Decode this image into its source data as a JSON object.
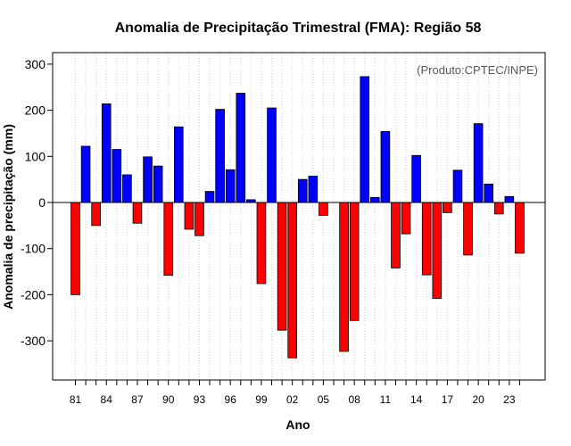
{
  "chart_data": {
    "type": "bar",
    "title": "Anomalia de Precipitação Trimestral (FMA): Região 58",
    "xlabel": "Ano",
    "ylabel": "Anomalia de precipitação (mm)",
    "annotation": "(Produto:CPTEC/INPE)",
    "ylim": [
      -385,
      325
    ],
    "yticks": [
      -300,
      -200,
      -100,
      0,
      100,
      200,
      300
    ],
    "grid": "vertical dotted, every year",
    "positive_color": "#0000ff",
    "negative_color": "#ff0000",
    "categories": [
      "1981",
      "1982",
      "1983",
      "1984",
      "1985",
      "1986",
      "1987",
      "1988",
      "1989",
      "1990",
      "1991",
      "1992",
      "1993",
      "1994",
      "1995",
      "1996",
      "1997",
      "1998",
      "1999",
      "2000",
      "2001",
      "2002",
      "2003",
      "2004",
      "2005",
      "2006",
      "2007",
      "2008",
      "2009",
      "2010",
      "2011",
      "2012",
      "2013",
      "2014",
      "2015",
      "2016",
      "2017",
      "2018",
      "2019",
      "2020",
      "2021",
      "2022",
      "2023",
      "2024"
    ],
    "values": [
      -200,
      122,
      -50,
      214,
      115,
      60,
      -45,
      99,
      79,
      -158,
      164,
      -58,
      -72,
      24,
      202,
      71,
      237,
      6,
      -176,
      205,
      -277,
      -337,
      50,
      57,
      -28,
      0,
      -323,
      -256,
      273,
      11,
      154,
      -142,
      -68,
      102,
      -157,
      -208,
      -22,
      70,
      -114,
      171,
      40,
      -25,
      13,
      -110
    ],
    "xtick_labels": [
      {
        "index": 0,
        "label": "81"
      },
      {
        "index": 3,
        "label": "84"
      },
      {
        "index": 6,
        "label": "87"
      },
      {
        "index": 9,
        "label": "90"
      },
      {
        "index": 12,
        "label": "93"
      },
      {
        "index": 15,
        "label": "96"
      },
      {
        "index": 18,
        "label": "99"
      },
      {
        "index": 21,
        "label": "02"
      },
      {
        "index": 24,
        "label": "05"
      },
      {
        "index": 27,
        "label": "08"
      },
      {
        "index": 30,
        "label": "11"
      },
      {
        "index": 33,
        "label": "14"
      },
      {
        "index": 36,
        "label": "17"
      },
      {
        "index": 39,
        "label": "20"
      },
      {
        "index": 42,
        "label": "23"
      }
    ]
  }
}
